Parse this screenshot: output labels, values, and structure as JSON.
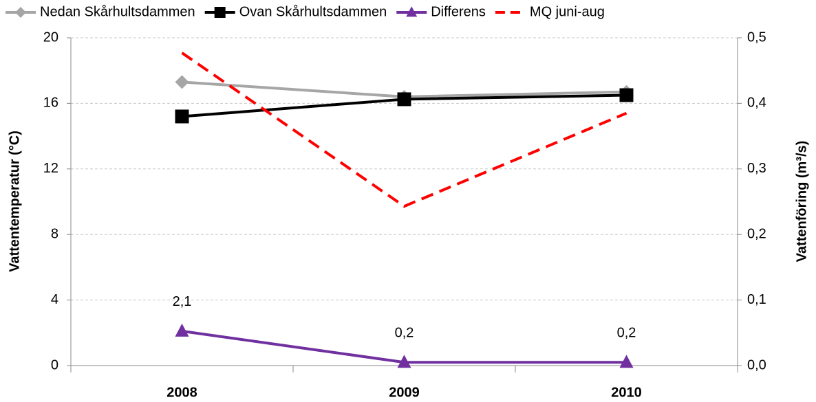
{
  "chart_data": {
    "type": "line",
    "categories": [
      "2008",
      "2009",
      "2010"
    ],
    "ylabel": "Vattentemperatur (°C)",
    "y2label": "Vattenföring (m³/s)",
    "ylim": [
      0,
      20
    ],
    "yticks": [
      0,
      4,
      8,
      12,
      16,
      20
    ],
    "y2lim": [
      0,
      0.5
    ],
    "y2ticks": [
      {
        "value": 0,
        "label": "0,0"
      },
      {
        "value": 0.1,
        "label": "0,1"
      },
      {
        "value": 0.2,
        "label": "0,2"
      },
      {
        "value": 0.3,
        "label": "0,3"
      },
      {
        "value": 0.4,
        "label": "0,4"
      },
      {
        "value": 0.5,
        "label": "0,5"
      }
    ],
    "grid": true,
    "legend": "top",
    "series": [
      {
        "name": "Nedan Skårhultsdammen",
        "color": "#a6a6a6",
        "marker": "diamond",
        "values": [
          17.3,
          16.4,
          16.7
        ]
      },
      {
        "name": "Ovan Skårhultsdammen",
        "color": "#000000",
        "marker": "square",
        "values": [
          15.2,
          16.25,
          16.5
        ]
      },
      {
        "name": "Differens",
        "color": "#7030a0",
        "marker": "triangle",
        "values": [
          2.1,
          0.2,
          0.2
        ],
        "value_labels": [
          "2,1",
          "0,2",
          "0,2"
        ]
      },
      {
        "name": "MQ juni-aug",
        "color": "#ff0000",
        "dash": true,
        "axis": "y2",
        "values": [
          0.477,
          0.243,
          0.385
        ]
      }
    ]
  }
}
